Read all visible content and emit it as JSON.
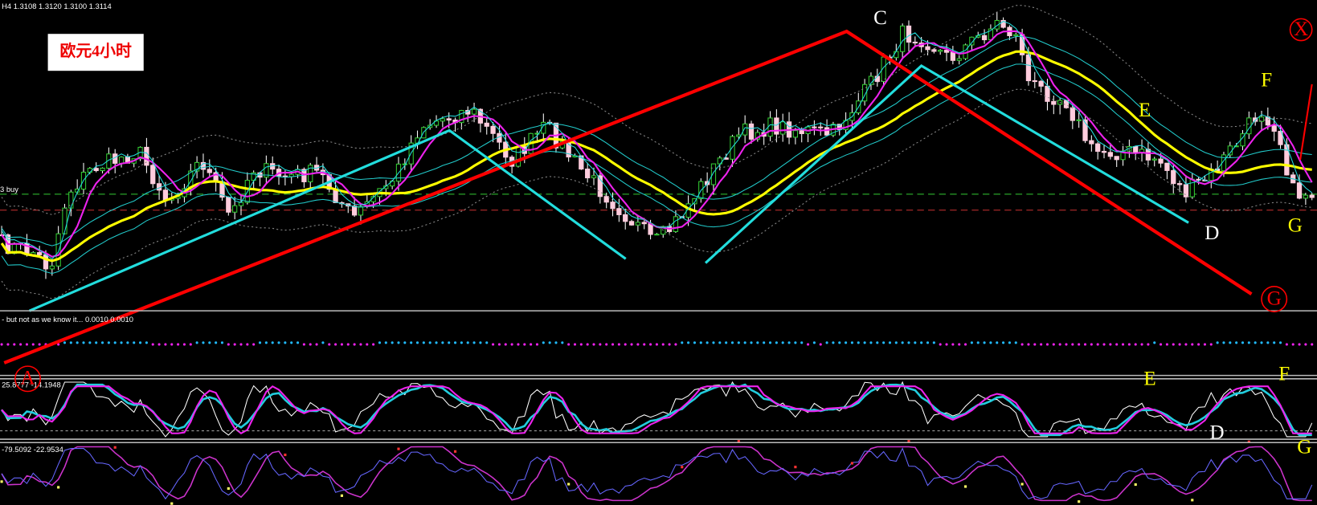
{
  "header": {
    "symbol_line": "H4  1.3108 1.3120 1.3100 1.3114",
    "title_box": "欧元4小时",
    "buy_label": "3 buy"
  },
  "indicators": {
    "pane1": "- but not as we know it...  0.0010 0.0010",
    "pane2": "25.8777 -14.1948",
    "pane3": "-79.5092 -22.9534"
  },
  "labels": {
    "main": {
      "c": "C",
      "d": "D",
      "e": "E",
      "f": "F",
      "g": "G",
      "x": "X",
      "g_circle": "G"
    },
    "pane1": {
      "a": "A"
    },
    "pane2": {
      "e": "E",
      "f": "F",
      "d": "D",
      "g": "G"
    }
  }
}
